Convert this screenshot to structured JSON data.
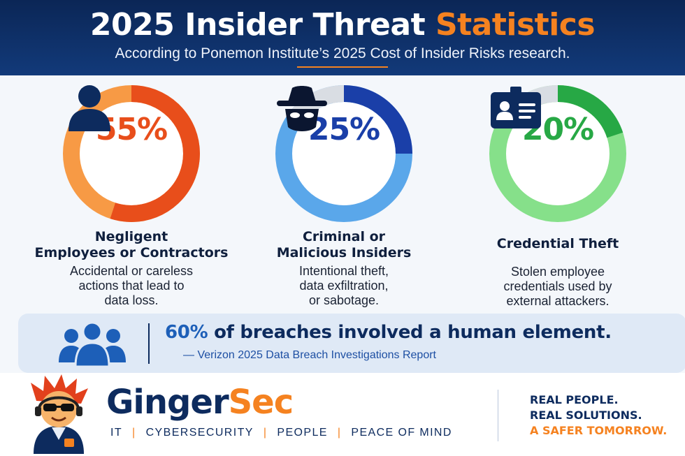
{
  "header": {
    "title_main": "2025 Insider Threat ",
    "title_accent": "Statistics",
    "subtitle": "According to Ponemon Institute’s 2025 Cost of Insider Risks research."
  },
  "stats": [
    {
      "percent": "55%",
      "value": 55,
      "label_line1": "Negligent",
      "label_line2": "Employees or Contractors",
      "desc_line1": "Accidental or careless",
      "desc_line2": "actions that lead to",
      "desc_line3": "data loss.",
      "icon": "person-icon",
      "color": "#e84e1b",
      "ring_light": "#f79a45"
    },
    {
      "percent": "25%",
      "value": 25,
      "label_line1": "Criminal or",
      "label_line2": "Malicious Insiders",
      "desc_line1": "Intentional theft,",
      "desc_line2": "data exfiltration,",
      "desc_line3": "or sabotage.",
      "icon": "masked-hacker-icon",
      "color": "#1a3fa8",
      "ring_light": "#5aa7ea"
    },
    {
      "percent": "20%",
      "value": 20,
      "label_line1": "Credential Theft",
      "desc_line1": "Stolen employee",
      "desc_line2": "credentials used by",
      "desc_line3": "external attackers.",
      "icon": "id-card-icon",
      "color": "#27a845",
      "ring_light": "#86e08a"
    }
  ],
  "banner": {
    "headline_highlight": "60%",
    "headline_rest": " of breaches involved a human element.",
    "source": "— Verizon 2025 Data Breach Investigations Report",
    "icon": "group-people-icon"
  },
  "footer": {
    "brand_part1": "Ginger",
    "brand_part2": "Sec",
    "tagline": [
      "IT",
      "CYBERSECURITY",
      "PEOPLE",
      "PEACE OF MIND"
    ],
    "tagline_sep": "|",
    "slogan_line1": "REAL PEOPLE.",
    "slogan_line2": "REAL SOLUTIONS.",
    "slogan_line3": "A SAFER TOMORROW.",
    "mascot_icon": "ginger-mascot-icon"
  },
  "colors": {
    "navy": "#0d2b5e",
    "orange": "#f58220",
    "ring_track": "#d9dde3"
  }
}
